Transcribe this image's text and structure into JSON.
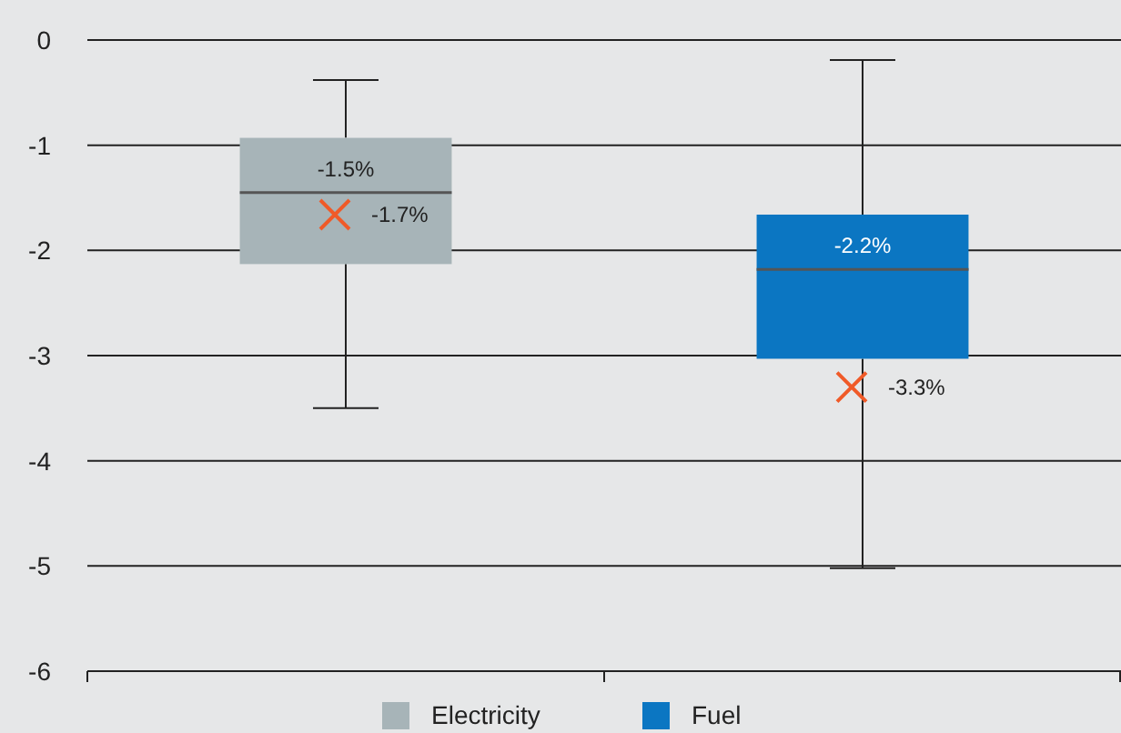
{
  "chart_data": {
    "type": "box",
    "categories": [
      null,
      null
    ],
    "series": [
      {
        "name": "Electricity",
        "color": "#a7b4b8",
        "boxes": [
          {
            "low": -3.5,
            "q1": -2.13,
            "median": -1.45,
            "q3": -0.93,
            "high": -0.38,
            "mean": -1.66
          },
          null
        ]
      },
      {
        "name": "Fuel",
        "color": "#0b76c2",
        "boxes": [
          null,
          {
            "low": -5.02,
            "q1": -3.03,
            "median": -2.18,
            "q3": -1.66,
            "high": -0.19,
            "mean": -3.3
          }
        ]
      }
    ],
    "ylim": [
      -6,
      0
    ],
    "yticks": [
      0,
      -1,
      -2,
      -3,
      -4,
      -5,
      -6
    ],
    "grid": "y",
    "legend": "bottom",
    "marker": "cross",
    "annotations": [
      "-1.5%",
      "-1.7%",
      "-2.2%",
      "-3.3%"
    ]
  }
}
